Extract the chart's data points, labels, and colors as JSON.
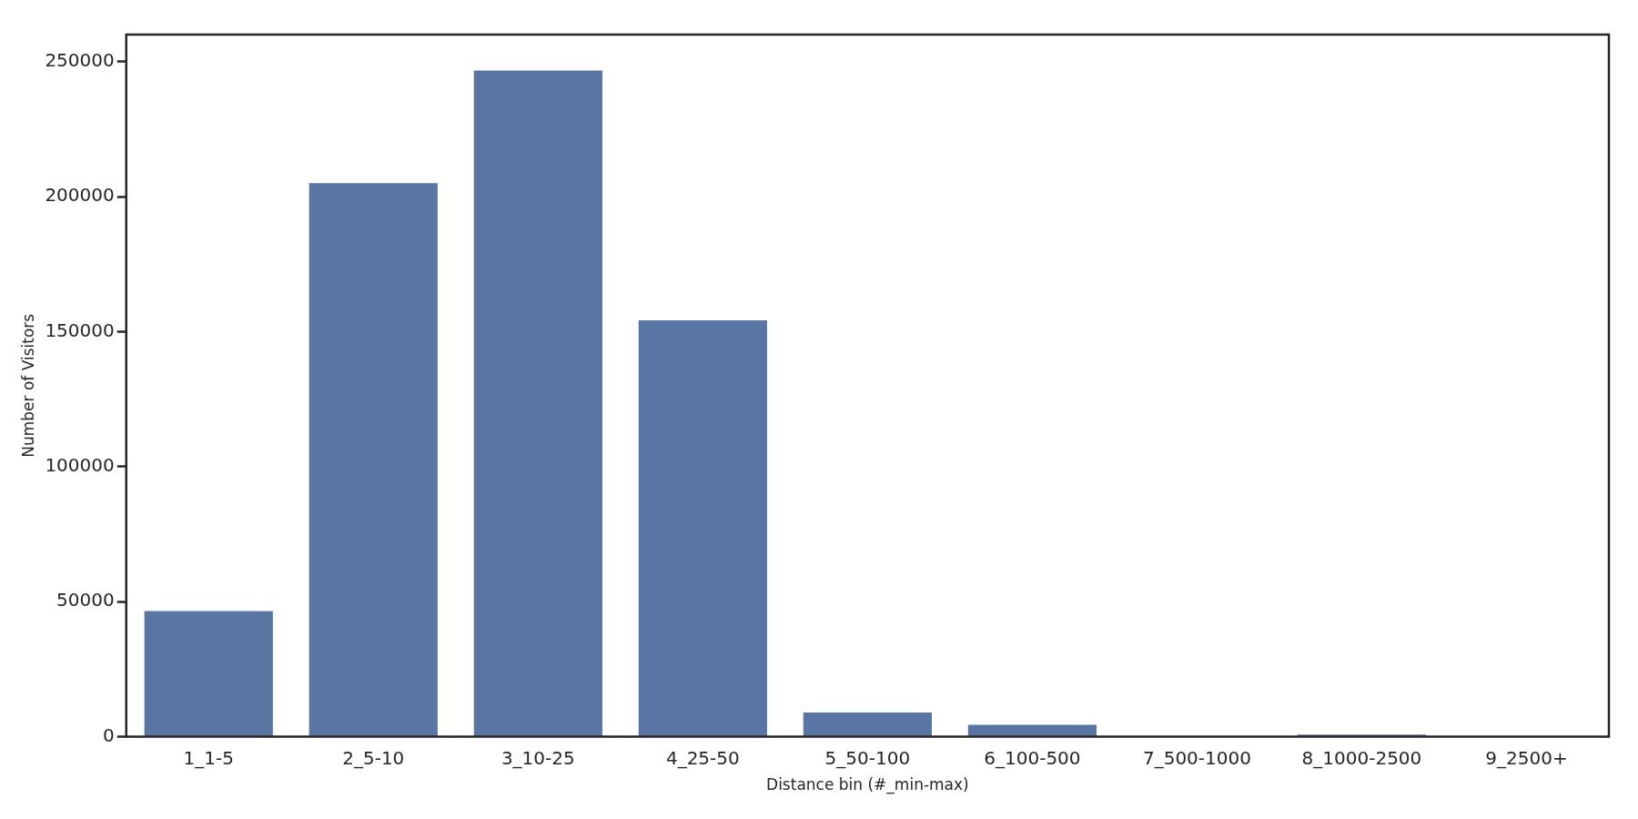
{
  "chart_data": {
    "type": "bar",
    "xlabel": "Distance bin (#_min-max)",
    "ylabel": "Number of Visitors",
    "categories": [
      "1_1-5",
      "2_5-10",
      "3_10-25",
      "4_25-50",
      "5_50-100",
      "6_100-500",
      "7_500-1000",
      "8_1000-2500",
      "9_2500+"
    ],
    "values": [
      46500,
      205000,
      246700,
      154200,
      9000,
      4400,
      0,
      800,
      0
    ],
    "color": "#5975a4",
    "ylim": [
      0,
      260000
    ],
    "yticks": [
      0,
      50000,
      100000,
      150000,
      200000,
      250000
    ],
    "grid": false,
    "legend": false
  }
}
